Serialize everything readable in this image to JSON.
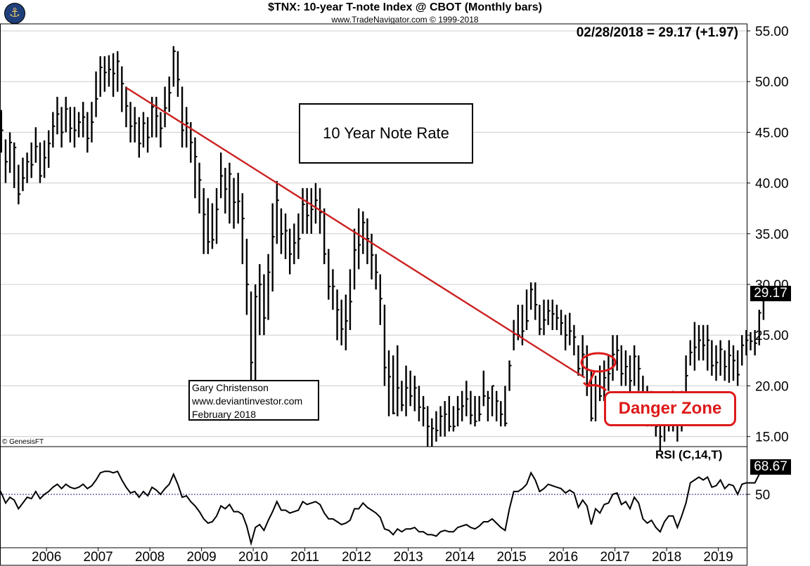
{
  "header": {
    "title": "$TNX:  10-year T-note Index @ CBOT  (Monthly bars)",
    "subtitle": "www.TradeNavigator.com © 1999-2018",
    "last_readout": "02/28/2018 = 29.17 (+1.97)",
    "logo_icon": "ship-logo-icon"
  },
  "annotations": {
    "note_box": "10 Year Note Rate",
    "author_lines": [
      "Gary Christenson",
      "www.deviantinvestor.com",
      "February 2018"
    ],
    "danger_label": "Danger Zone",
    "copyright": "© GenesisFT",
    "rsi_label": "RSI (C,14,T)",
    "last_price_tag": "29.17",
    "last_rsi_tag": "68.67"
  },
  "colors": {
    "bars": "#000000",
    "trendline": "#cc2020",
    "danger": "#dd1a1a",
    "rsi_line": "#000000",
    "rsi_reference": "#1a1a8c",
    "grid": "#cccccc"
  },
  "chart_data": [
    {
      "type": "bar",
      "subtype": "ohlc-monthly",
      "title": "$TNX:  10-year T-note Index @ CBOT  (Monthly bars)",
      "x_ticks": [
        "2006",
        "2007",
        "2008",
        "2009",
        "2010",
        "2011",
        "2012",
        "2013",
        "2014",
        "2015",
        "2016",
        "2017",
        "2018",
        "2019"
      ],
      "y_ticks": [
        "15.00",
        "20.00",
        "25.00",
        "30.00",
        "35.00",
        "40.00",
        "45.00",
        "50.00",
        "55.00"
      ],
      "ylim": [
        12.5,
        56.5
      ],
      "xlim": [
        2005.1,
        2019.55
      ],
      "grid": "horizontal",
      "start": 2005.0,
      "closes": [
        47.0,
        45.2,
        42.1,
        44.0,
        43.5,
        38.9,
        40.5,
        42.1,
        41.8,
        43.6,
        40.7,
        42.5,
        43.9,
        45.6,
        46.8,
        45.0,
        47.3,
        45.4,
        45.2,
        46.0,
        46.5,
        44.4,
        46.0,
        48.3,
        51.4,
        50.9,
        51.2,
        50.8,
        52.0,
        49.8,
        47.6,
        45.6,
        45.9,
        43.9,
        45.9,
        44.5,
        47.5,
        46.6,
        45.4,
        47.4,
        48.9,
        53.0,
        50.2,
        45.2,
        45.9,
        44.0,
        42.6,
        40.3,
        36.9,
        34.2,
        34.4,
        37.4,
        40.7,
        39.4,
        40.9,
        38.1,
        38.2,
        36.5,
        30.0,
        22.3,
        28.8,
        30.0,
        26.7,
        31.2,
        34.7,
        38.3,
        35.0,
        35.3,
        33.0,
        34.1,
        34.5,
        37.9,
        36.8,
        37.4,
        38.3,
        37.1,
        33.0,
        29.8,
        29.8,
        27.5,
        25.6,
        26.4,
        28.3,
        33.4,
        33.9,
        36.1,
        34.5,
        32.9,
        31.2,
        28.6,
        21.8,
        20.9,
        17.3,
        19.8,
        18.1,
        19.8,
        19.0,
        19.8,
        17.9,
        17.8,
        16.0,
        15.8,
        15.6,
        17.0,
        17.2,
        16.0,
        16.0,
        17.7,
        18.0,
        18.7,
        17.1,
        16.5,
        17.2,
        19.0,
        18.8,
        20.0,
        18.5,
        17.2,
        16.3,
        22.0,
        25.1,
        25.0,
        25.4,
        26.4,
        29.5,
        28.0,
        25.6,
        26.5,
        27.4,
        27.1,
        26.7,
        26.2,
        25.0,
        25.4,
        24.8,
        21.7,
        23.1,
        21.6,
        16.8,
        20.0,
        19.0,
        20.8,
        21.2,
        23.1,
        23.5,
        21.2,
        21.9,
        20.5,
        22.9,
        21.7,
        18.4,
        17.3,
        17.9,
        16.0,
        15.0,
        17.4,
        18.4,
        18.3,
        16.1,
        18.4,
        21.0,
        23.3,
        23.8,
        24.5,
        24.0,
        24.5,
        22.0,
        22.3,
        23.6,
        21.9,
        23.0,
        22.5,
        21.1,
        24.0,
        24.5,
        24.4,
        24.2,
        27.2,
        29.17
      ],
      "bar_ranges": [
        [
          45.0,
          48.0
        ],
        [
          43.0,
          47.2
        ],
        [
          40.0,
          44.3
        ],
        [
          41.0,
          45.0
        ],
        [
          39.5,
          44.0
        ],
        [
          37.9,
          41.8
        ],
        [
          39.2,
          42.5
        ],
        [
          40.0,
          43.0
        ],
        [
          40.5,
          44.0
        ],
        [
          42.0,
          45.5
        ],
        [
          40.0,
          44.0
        ],
        [
          40.5,
          44.2
        ],
        [
          41.5,
          45.2
        ],
        [
          43.5,
          47.0
        ],
        [
          44.8,
          48.5
        ],
        [
          43.5,
          47.5
        ],
        [
          45.0,
          48.5
        ],
        [
          44.0,
          47.5
        ],
        [
          43.5,
          47.5
        ],
        [
          44.5,
          47.0
        ],
        [
          44.5,
          48.0
        ],
        [
          43.0,
          47.0
        ],
        [
          44.0,
          48.0
        ],
        [
          46.5,
          51.0
        ],
        [
          48.5,
          52.5
        ],
        [
          49.0,
          52.5
        ],
        [
          49.5,
          52.6
        ],
        [
          48.5,
          52.8
        ],
        [
          49.0,
          53.0
        ],
        [
          47.0,
          51.5
        ],
        [
          45.5,
          49.5
        ],
        [
          44.0,
          48.0
        ],
        [
          44.0,
          47.5
        ],
        [
          42.5,
          46.5
        ],
        [
          43.5,
          47.0
        ],
        [
          43.0,
          46.5
        ],
        [
          44.5,
          48.5
        ],
        [
          44.5,
          48.5
        ],
        [
          43.5,
          47.0
        ],
        [
          45.5,
          49.5
        ],
        [
          47.0,
          50.5
        ],
        [
          49.5,
          53.5
        ],
        [
          48.5,
          53.0
        ],
        [
          43.5,
          49.5
        ],
        [
          43.5,
          47.5
        ],
        [
          42.0,
          46.0
        ],
        [
          38.5,
          44.5
        ],
        [
          37.0,
          42.0
        ],
        [
          33.0,
          39.5
        ],
        [
          33.0,
          38.5
        ],
        [
          33.5,
          38.0
        ],
        [
          34.0,
          39.5
        ],
        [
          38.5,
          43.0
        ],
        [
          37.0,
          41.5
        ],
        [
          36.0,
          42.0
        ],
        [
          35.5,
          40.5
        ],
        [
          36.0,
          41.0
        ],
        [
          32.0,
          39.0
        ],
        [
          27.0,
          34.5
        ],
        [
          20.3,
          29.3
        ],
        [
          20.5,
          30.0
        ],
        [
          25.0,
          32.0
        ],
        [
          25.0,
          31.0
        ],
        [
          26.5,
          33.0
        ],
        [
          29.3,
          38.0
        ],
        [
          34.0,
          40.2
        ],
        [
          33.0,
          37.5
        ],
        [
          32.5,
          37.0
        ],
        [
          31.0,
          35.5
        ],
        [
          32.0,
          36.0
        ],
        [
          32.5,
          37.0
        ],
        [
          35.0,
          39.5
        ],
        [
          35.0,
          39.5
        ],
        [
          35.0,
          39.5
        ],
        [
          36.0,
          40.0
        ],
        [
          35.0,
          39.5
        ],
        [
          32.0,
          37.5
        ],
        [
          28.5,
          33.5
        ],
        [
          27.5,
          31.5
        ],
        [
          24.5,
          29.5
        ],
        [
          24.0,
          28.5
        ],
        [
          23.5,
          29.0
        ],
        [
          25.5,
          31.5
        ],
        [
          29.5,
          35.5
        ],
        [
          31.5,
          37.5
        ],
        [
          33.0,
          37.2
        ],
        [
          32.0,
          36.5
        ],
        [
          30.5,
          35.0
        ],
        [
          29.5,
          33.0
        ],
        [
          26.0,
          31.0
        ],
        [
          20.0,
          28.0
        ],
        [
          17.0,
          23.5
        ],
        [
          17.2,
          23.0
        ],
        [
          17.0,
          24.0
        ],
        [
          17.5,
          20.5
        ],
        [
          17.0,
          22.0
        ],
        [
          18.0,
          21.5
        ],
        [
          17.5,
          21.0
        ],
        [
          16.5,
          20.0
        ],
        [
          16.0,
          19.0
        ],
        [
          14.0,
          18.0
        ],
        [
          14.0,
          16.8
        ],
        [
          14.5,
          17.5
        ],
        [
          15.0,
          18.0
        ],
        [
          15.0,
          18.5
        ],
        [
          15.5,
          19.0
        ],
        [
          15.5,
          18.0
        ],
        [
          16.0,
          19.0
        ],
        [
          16.5,
          19.5
        ],
        [
          17.0,
          20.5
        ],
        [
          16.2,
          19.5
        ],
        [
          16.0,
          19.0
        ],
        [
          16.5,
          19.0
        ],
        [
          18.0,
          21.5
        ],
        [
          16.5,
          19.5
        ],
        [
          17.0,
          20.0
        ],
        [
          16.5,
          19.5
        ],
        [
          16.0,
          18.5
        ],
        [
          16.0,
          20.0
        ],
        [
          19.5,
          22.5
        ],
        [
          23.5,
          26.5
        ],
        [
          24.5,
          28.0
        ],
        [
          24.0,
          28.0
        ],
        [
          25.5,
          29.5
        ],
        [
          27.5,
          30.2
        ],
        [
          26.5,
          30.2
        ],
        [
          25.0,
          28.0
        ],
        [
          25.0,
          28.5
        ],
        [
          26.0,
          28.5
        ],
        [
          25.5,
          28.5
        ],
        [
          25.5,
          28.0
        ],
        [
          25.0,
          27.5
        ],
        [
          23.5,
          27.0
        ],
        [
          24.0,
          27.2
        ],
        [
          23.0,
          26.0
        ],
        [
          21.0,
          24.0
        ],
        [
          21.0,
          25.0
        ],
        [
          19.0,
          24.0
        ],
        [
          16.5,
          21.5
        ],
        [
          16.5,
          21.0
        ],
        [
          18.5,
          22.0
        ],
        [
          18.5,
          22.5
        ],
        [
          19.5,
          23.0
        ],
        [
          20.5,
          25.0
        ],
        [
          21.5,
          25.0
        ],
        [
          20.0,
          24.0
        ],
        [
          20.0,
          23.5
        ],
        [
          19.0,
          23.0
        ],
        [
          20.0,
          24.0
        ],
        [
          19.5,
          23.0
        ],
        [
          16.5,
          21.0
        ],
        [
          16.0,
          20.0
        ],
        [
          16.0,
          19.5
        ],
        [
          15.0,
          18.0
        ],
        [
          13.6,
          17.0
        ],
        [
          14.5,
          18.0
        ],
        [
          15.5,
          19.0
        ],
        [
          15.5,
          19.5
        ],
        [
          14.5,
          18.5
        ],
        [
          15.5,
          19.5
        ],
        [
          18.5,
          23.0
        ],
        [
          22.0,
          24.5
        ],
        [
          21.5,
          26.3
        ],
        [
          22.5,
          26.0
        ],
        [
          22.5,
          26.0
        ],
        [
          21.5,
          26.0
        ],
        [
          21.0,
          24.5
        ],
        [
          20.5,
          24.0
        ],
        [
          21.0,
          24.5
        ],
        [
          20.5,
          23.5
        ],
        [
          20.3,
          24.5
        ],
        [
          20.5,
          24.0
        ],
        [
          20.0,
          23.5
        ],
        [
          22.0,
          25.0
        ],
        [
          23.0,
          25.5
        ],
        [
          23.5,
          25.3
        ],
        [
          23.0,
          25.5
        ],
        [
          24.0,
          27.5
        ],
        [
          26.5,
          29.3
        ]
      ]
    },
    {
      "type": "line",
      "title": "RSI (C,14,T)",
      "y_ticks": [
        "50"
      ],
      "ylim": [
        10,
        90
      ],
      "reference_line": 50,
      "last_value": 68.67,
      "values": [
        57.0,
        51.0,
        44.0,
        48.0,
        46.0,
        40.0,
        44.0,
        48.0,
        47.0,
        52.0,
        47.0,
        50.0,
        52.0,
        55.0,
        57.0,
        54.0,
        57.0,
        55.0,
        54.0,
        55.0,
        57.0,
        54.0,
        56.0,
        60.0,
        65.0,
        66.0,
        66.0,
        65.0,
        66.0,
        60.0,
        55.0,
        51.0,
        52.0,
        48.0,
        52.0,
        49.0,
        55.0,
        53.0,
        50.0,
        54.0,
        57.0,
        64.0,
        57.0,
        48.0,
        49.0,
        45.0,
        42.0,
        38.0,
        33.0,
        30.0,
        31.0,
        35.0,
        42.0,
        40.0,
        43.0,
        38.0,
        38.0,
        36.0,
        28.0,
        16.0,
        27.0,
        29.0,
        25.0,
        32.0,
        38.0,
        45.0,
        39.0,
        39.0,
        37.0,
        38.0,
        39.0,
        45.0,
        43.0,
        44.0,
        45.0,
        43.0,
        37.0,
        33.0,
        33.0,
        31.0,
        29.0,
        30.0,
        32.0,
        40.0,
        40.0,
        44.0,
        41.0,
        39.0,
        37.0,
        34.0,
        26.0,
        25.0,
        22.0,
        26.0,
        24.0,
        26.0,
        26.0,
        27.0,
        24.0,
        24.0,
        22.0,
        22.0,
        21.0,
        24.0,
        25.0,
        24.0,
        24.0,
        27.0,
        28.0,
        29.0,
        27.0,
        26.0,
        28.0,
        31.0,
        31.0,
        33.0,
        30.0,
        27.0,
        25.0,
        40.0,
        52.0,
        52.0,
        54.0,
        57.0,
        65.0,
        60.0,
        52.0,
        54.0,
        57.0,
        56.0,
        55.0,
        54.0,
        51.0,
        53.0,
        51.0,
        41.0,
        46.0,
        42.0,
        29.0,
        40.0,
        37.0,
        43.0,
        44.0,
        50.0,
        51.0,
        43.0,
        45.0,
        40.0,
        48.0,
        44.0,
        33.0,
        30.0,
        32.0,
        27.0,
        24.0,
        31.0,
        35.0,
        35.0,
        27.0,
        35.0,
        44.0,
        58.0,
        60.0,
        62.0,
        60.0,
        62.0,
        55.0,
        56.0,
        60.0,
        54.0,
        57.0,
        56.0,
        50.0,
        57.0,
        58.0,
        58.0,
        58.0,
        64.0,
        68.67
      ]
    }
  ]
}
